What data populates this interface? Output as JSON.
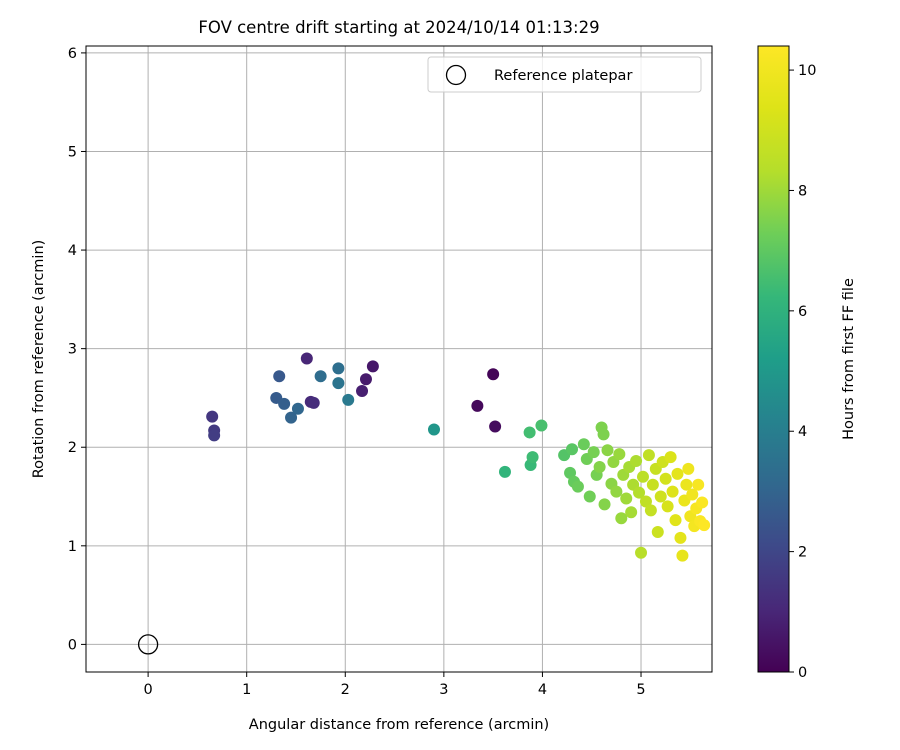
{
  "chart_data": {
    "type": "scatter",
    "title": "FOV centre drift starting at 2024/10/14 01:13:29",
    "xlabel": "Angular distance from reference (arcmin)",
    "ylabel": "Rotation from reference (arcmin)",
    "colorbar_label": "Hours from first FF file",
    "xlim": [
      -0.63,
      5.72
    ],
    "ylim": [
      -0.28,
      6.07
    ],
    "xticks": [
      0,
      1,
      2,
      3,
      4,
      5
    ],
    "yticks": [
      0,
      1,
      2,
      3,
      4,
      5,
      6
    ],
    "colorbar_range": [
      0,
      10.4
    ],
    "colorbar_ticks": [
      0,
      2,
      4,
      6,
      8,
      10
    ],
    "grid": true,
    "colormap": "viridis",
    "legend": {
      "placement": "top-right",
      "entries": [
        {
          "label": "Reference platepar",
          "marker": "hollow-circle"
        }
      ]
    },
    "reference_point": {
      "x": 0,
      "y": 0
    },
    "points": [
      {
        "x": 3.5,
        "y": 2.74,
        "c": 0.1
      },
      {
        "x": 3.34,
        "y": 2.42,
        "c": 0.2
      },
      {
        "x": 3.52,
        "y": 2.21,
        "c": 0.3
      },
      {
        "x": 2.28,
        "y": 2.82,
        "c": 0.6
      },
      {
        "x": 2.21,
        "y": 2.69,
        "c": 0.7
      },
      {
        "x": 2.17,
        "y": 2.57,
        "c": 0.8
      },
      {
        "x": 1.61,
        "y": 2.9,
        "c": 1.0
      },
      {
        "x": 1.65,
        "y": 2.46,
        "c": 1.1
      },
      {
        "x": 1.68,
        "y": 2.45,
        "c": 1.2
      },
      {
        "x": 0.65,
        "y": 2.31,
        "c": 1.5
      },
      {
        "x": 0.67,
        "y": 2.17,
        "c": 1.6
      },
      {
        "x": 0.67,
        "y": 2.12,
        "c": 1.7
      },
      {
        "x": 1.33,
        "y": 2.72,
        "c": 2.6
      },
      {
        "x": 1.3,
        "y": 2.5,
        "c": 2.7
      },
      {
        "x": 1.38,
        "y": 2.44,
        "c": 2.8
      },
      {
        "x": 1.45,
        "y": 2.3,
        "c": 3.0
      },
      {
        "x": 1.52,
        "y": 2.39,
        "c": 3.1
      },
      {
        "x": 1.75,
        "y": 2.72,
        "c": 3.3
      },
      {
        "x": 1.93,
        "y": 2.8,
        "c": 3.4
      },
      {
        "x": 1.93,
        "y": 2.65,
        "c": 3.6
      },
      {
        "x": 2.03,
        "y": 2.48,
        "c": 3.8
      },
      {
        "x": 2.9,
        "y": 2.18,
        "c": 4.9
      },
      {
        "x": 3.62,
        "y": 1.75,
        "c": 6.1
      },
      {
        "x": 3.88,
        "y": 1.82,
        "c": 6.3
      },
      {
        "x": 3.9,
        "y": 1.9,
        "c": 6.4
      },
      {
        "x": 3.87,
        "y": 2.15,
        "c": 6.5
      },
      {
        "x": 3.99,
        "y": 2.22,
        "c": 6.6
      },
      {
        "x": 4.22,
        "y": 1.92,
        "c": 6.8
      },
      {
        "x": 4.3,
        "y": 1.98,
        "c": 6.9
      },
      {
        "x": 4.28,
        "y": 1.74,
        "c": 7.0
      },
      {
        "x": 4.32,
        "y": 1.65,
        "c": 7.1
      },
      {
        "x": 4.36,
        "y": 1.6,
        "c": 7.2
      },
      {
        "x": 4.42,
        "y": 2.03,
        "c": 7.2
      },
      {
        "x": 4.45,
        "y": 1.88,
        "c": 7.3
      },
      {
        "x": 4.48,
        "y": 1.5,
        "c": 7.3
      },
      {
        "x": 4.52,
        "y": 1.95,
        "c": 7.4
      },
      {
        "x": 4.55,
        "y": 1.72,
        "c": 7.4
      },
      {
        "x": 4.6,
        "y": 2.2,
        "c": 7.5
      },
      {
        "x": 4.62,
        "y": 2.13,
        "c": 7.5
      },
      {
        "x": 4.58,
        "y": 1.8,
        "c": 7.6
      },
      {
        "x": 4.63,
        "y": 1.42,
        "c": 7.6
      },
      {
        "x": 4.66,
        "y": 1.97,
        "c": 7.7
      },
      {
        "x": 4.7,
        "y": 1.63,
        "c": 7.7
      },
      {
        "x": 4.72,
        "y": 1.85,
        "c": 7.8
      },
      {
        "x": 4.75,
        "y": 1.55,
        "c": 7.8
      },
      {
        "x": 4.78,
        "y": 1.93,
        "c": 7.9
      },
      {
        "x": 4.8,
        "y": 1.28,
        "c": 7.9
      },
      {
        "x": 4.82,
        "y": 1.72,
        "c": 8.0
      },
      {
        "x": 4.85,
        "y": 1.48,
        "c": 8.0
      },
      {
        "x": 4.88,
        "y": 1.8,
        "c": 8.1
      },
      {
        "x": 4.9,
        "y": 1.34,
        "c": 8.1
      },
      {
        "x": 4.92,
        "y": 1.62,
        "c": 8.2
      },
      {
        "x": 4.95,
        "y": 1.86,
        "c": 8.2
      },
      {
        "x": 4.98,
        "y": 1.54,
        "c": 8.3
      },
      {
        "x": 5.0,
        "y": 0.93,
        "c": 8.4
      },
      {
        "x": 5.02,
        "y": 1.7,
        "c": 8.5
      },
      {
        "x": 5.05,
        "y": 1.45,
        "c": 8.6
      },
      {
        "x": 5.08,
        "y": 1.92,
        "c": 8.6
      },
      {
        "x": 5.1,
        "y": 1.36,
        "c": 8.7
      },
      {
        "x": 5.12,
        "y": 1.62,
        "c": 8.8
      },
      {
        "x": 5.15,
        "y": 1.78,
        "c": 8.8
      },
      {
        "x": 5.17,
        "y": 1.14,
        "c": 8.9
      },
      {
        "x": 5.2,
        "y": 1.5,
        "c": 9.0
      },
      {
        "x": 5.22,
        "y": 1.85,
        "c": 9.0
      },
      {
        "x": 5.25,
        "y": 1.68,
        "c": 9.1
      },
      {
        "x": 5.27,
        "y": 1.4,
        "c": 9.2
      },
      {
        "x": 5.3,
        "y": 1.9,
        "c": 9.3
      },
      {
        "x": 5.32,
        "y": 1.55,
        "c": 9.4
      },
      {
        "x": 5.35,
        "y": 1.26,
        "c": 9.5
      },
      {
        "x": 5.37,
        "y": 1.73,
        "c": 9.6
      },
      {
        "x": 5.4,
        "y": 1.08,
        "c": 9.6
      },
      {
        "x": 5.42,
        "y": 0.9,
        "c": 9.7
      },
      {
        "x": 5.44,
        "y": 1.46,
        "c": 9.8
      },
      {
        "x": 5.46,
        "y": 1.62,
        "c": 9.8
      },
      {
        "x": 5.48,
        "y": 1.78,
        "c": 9.9
      },
      {
        "x": 5.5,
        "y": 1.3,
        "c": 10.0
      },
      {
        "x": 5.52,
        "y": 1.52,
        "c": 10.0
      },
      {
        "x": 5.54,
        "y": 1.2,
        "c": 10.1
      },
      {
        "x": 5.56,
        "y": 1.38,
        "c": 10.2
      },
      {
        "x": 5.58,
        "y": 1.62,
        "c": 10.2
      },
      {
        "x": 5.6,
        "y": 1.25,
        "c": 10.3
      },
      {
        "x": 5.62,
        "y": 1.44,
        "c": 10.3
      },
      {
        "x": 5.64,
        "y": 1.21,
        "c": 10.4
      }
    ]
  }
}
